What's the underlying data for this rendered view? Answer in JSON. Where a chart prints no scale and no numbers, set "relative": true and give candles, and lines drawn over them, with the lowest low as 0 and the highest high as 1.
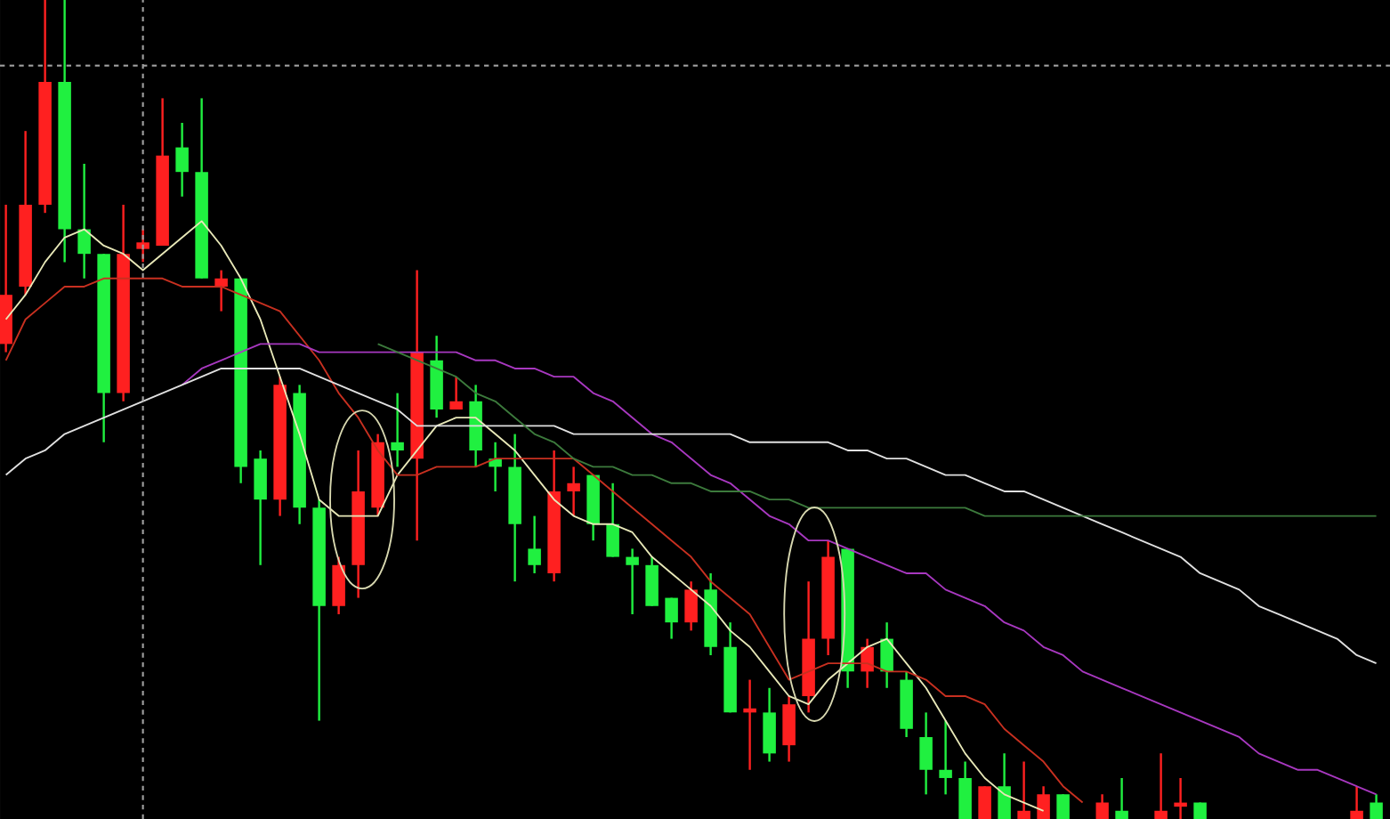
{
  "chart_data": {
    "type": "candlestick",
    "relative": true,
    "categories": [
      null,
      null,
      null,
      null,
      null,
      null,
      null,
      null,
      null,
      null,
      null,
      null,
      null,
      null,
      null,
      null,
      null,
      null,
      null,
      null,
      null,
      null,
      null,
      null,
      null,
      null,
      null,
      null,
      null,
      null,
      null,
      null,
      null,
      null,
      null,
      null,
      null,
      null,
      null,
      null,
      null,
      null,
      null,
      null,
      null,
      null,
      null,
      null,
      null,
      null,
      null,
      null,
      null,
      null,
      null,
      null,
      null,
      null,
      null,
      null,
      null,
      null,
      null,
      null,
      null,
      null,
      null,
      null,
      null,
      null,
      null
    ],
    "ohlc": [
      [
        0.58,
        0.75,
        0.57,
        0.64
      ],
      [
        0.65,
        0.84,
        0.64,
        0.75
      ],
      [
        0.75,
        1.0,
        0.74,
        0.9
      ],
      [
        0.9,
        1.0,
        0.68,
        0.72
      ],
      [
        0.72,
        0.8,
        0.66,
        0.69
      ],
      [
        0.69,
        0.69,
        0.46,
        0.52
      ],
      [
        0.52,
        0.75,
        0.51,
        0.69
      ],
      [
        0.696,
        0.72,
        0.68,
        0.704
      ],
      [
        0.7,
        0.88,
        0.7,
        0.81
      ],
      [
        0.82,
        0.85,
        0.76,
        0.79
      ],
      [
        0.79,
        0.88,
        0.66,
        0.66
      ],
      [
        0.65,
        0.67,
        0.62,
        0.66
      ],
      [
        0.66,
        0.66,
        0.41,
        0.43
      ],
      [
        0.44,
        0.45,
        0.31,
        0.39
      ],
      [
        0.39,
        0.54,
        0.37,
        0.53
      ],
      [
        0.52,
        0.53,
        0.36,
        0.38
      ],
      [
        0.38,
        0.39,
        0.12,
        0.26
      ],
      [
        0.26,
        0.32,
        0.25,
        0.31
      ],
      [
        0.31,
        0.45,
        0.27,
        0.4
      ],
      [
        0.38,
        0.47,
        0.37,
        0.46
      ],
      [
        0.46,
        0.52,
        0.43,
        0.45
      ],
      [
        0.44,
        0.67,
        0.34,
        0.57
      ],
      [
        0.56,
        0.59,
        0.49,
        0.5
      ],
      [
        0.5,
        0.54,
        0.5,
        0.51
      ],
      [
        0.51,
        0.53,
        0.43,
        0.45
      ],
      [
        0.44,
        0.46,
        0.4,
        0.43
      ],
      [
        0.43,
        0.47,
        0.29,
        0.36
      ],
      [
        0.33,
        0.37,
        0.3,
        0.31
      ],
      [
        0.3,
        0.45,
        0.29,
        0.4
      ],
      [
        0.4,
        0.43,
        0.37,
        0.41
      ],
      [
        0.42,
        0.42,
        0.34,
        0.36
      ],
      [
        0.36,
        0.41,
        0.32,
        0.32
      ],
      [
        0.32,
        0.33,
        0.25,
        0.31
      ],
      [
        0.31,
        0.32,
        0.26,
        0.26
      ],
      [
        0.27,
        0.27,
        0.22,
        0.24
      ],
      [
        0.24,
        0.29,
        0.23,
        0.28
      ],
      [
        0.28,
        0.3,
        0.2,
        0.21
      ],
      [
        0.21,
        0.24,
        0.13,
        0.13
      ],
      [
        0.13,
        0.17,
        0.06,
        0.135
      ],
      [
        0.13,
        0.16,
        0.07,
        0.08
      ],
      [
        0.09,
        0.15,
        0.07,
        0.14
      ],
      [
        0.15,
        0.29,
        0.13,
        0.22
      ],
      [
        0.22,
        0.34,
        0.2,
        0.32
      ],
      [
        0.33,
        0.33,
        0.16,
        0.18
      ],
      [
        0.18,
        0.22,
        0.16,
        0.21
      ],
      [
        0.22,
        0.24,
        0.16,
        0.18
      ],
      [
        0.17,
        0.18,
        0.1,
        0.11
      ],
      [
        0.1,
        0.13,
        0.03,
        0.06
      ],
      [
        0.06,
        0.12,
        0.03,
        0.05
      ],
      [
        0.05,
        0.07,
        0.0,
        0.0
      ],
      [
        0.0,
        0.04,
        0.0,
        0.04
      ],
      [
        0.04,
        0.08,
        0.0,
        0.0
      ],
      [
        0.0,
        0.07,
        0.0,
        0.01
      ],
      [
        0.0,
        0.04,
        0.0,
        0.03
      ],
      [
        0.03,
        0.03,
        0.0,
        0.0
      ],
      null,
      [
        0.0,
        0.03,
        0.0,
        0.02
      ],
      [
        0.01,
        0.05,
        0.0,
        0.0
      ],
      null,
      [
        0.0,
        0.08,
        0.0,
        0.01
      ],
      [
        0.015,
        0.05,
        0.0,
        0.02
      ],
      [
        0.02,
        0.02,
        0.0,
        0.0
      ],
      null,
      null,
      null,
      null,
      null,
      null,
      null,
      [
        0.0,
        0.04,
        0.0,
        0.01
      ],
      [
        0.02,
        0.03,
        0.0,
        0.0
      ]
    ],
    "colors": [
      "#ff2020",
      "#ff2020",
      "#ff2020",
      "#20f040",
      "#20f040",
      "#20f040",
      "#ff2020",
      "#ff2020",
      "#ff2020",
      "#20f040",
      "#20f040",
      "#ff2020",
      "#20f040",
      "#20f040",
      "#ff2020",
      "#20f040",
      "#20f040",
      "#ff2020",
      "#ff2020",
      "#ff2020",
      "#20f040",
      "#ff2020",
      "#20f040",
      "#ff2020",
      "#20f040",
      "#20f040",
      "#20f040",
      "#20f040",
      "#ff2020",
      "#ff2020",
      "#20f040",
      "#20f040",
      "#20f040",
      "#20f040",
      "#20f040",
      "#ff2020",
      "#20f040",
      "#20f040",
      "#ff2020",
      "#20f040",
      "#ff2020",
      "#ff2020",
      "#ff2020",
      "#20f040",
      "#ff2020",
      "#20f040",
      "#20f040",
      "#20f040",
      "#20f040",
      "#20f040",
      "#ff2020",
      "#20f040",
      "#ff2020",
      "#ff2020",
      "#20f040",
      null,
      "#ff2020",
      "#20f040",
      null,
      "#ff2020",
      "#ff2020",
      "#20f040",
      null,
      null,
      null,
      null,
      null,
      null,
      null,
      "#ff2020",
      "#20f040"
    ],
    "series": [
      {
        "type": "line",
        "color": "#e8e8b8",
        "values": [
          0.61,
          0.64,
          0.68,
          0.71,
          0.72,
          0.7,
          0.69,
          0.67,
          0.69,
          0.71,
          0.73,
          0.7,
          0.66,
          0.61,
          0.54,
          0.47,
          0.39,
          0.37,
          0.37,
          0.37,
          0.42,
          0.45,
          0.48,
          0.49,
          0.49,
          0.47,
          0.45,
          0.42,
          0.39,
          0.37,
          0.36,
          0.36,
          0.35,
          0.32,
          0.3,
          0.28,
          0.26,
          0.23,
          0.21,
          0.18,
          0.15,
          0.14,
          0.17,
          0.19,
          0.21,
          0.22,
          0.19,
          0.16,
          0.12,
          0.08,
          0.05,
          0.03,
          0.02,
          0.01,
          null,
          null,
          null,
          null,
          null,
          null,
          null,
          null,
          null,
          null,
          null,
          null,
          null,
          null,
          null,
          null,
          null
        ]
      },
      {
        "type": "line",
        "color": "#c83020",
        "values": [
          0.56,
          0.61,
          0.63,
          0.65,
          0.65,
          0.66,
          0.66,
          0.66,
          0.66,
          0.65,
          0.65,
          0.65,
          0.64,
          0.63,
          0.62,
          0.59,
          0.56,
          0.52,
          0.49,
          0.45,
          0.42,
          0.42,
          0.43,
          0.43,
          0.43,
          0.44,
          0.44,
          0.44,
          0.44,
          0.44,
          0.42,
          0.4,
          0.38,
          0.36,
          0.34,
          0.32,
          0.29,
          0.27,
          0.25,
          0.21,
          0.17,
          0.18,
          0.19,
          0.19,
          0.19,
          0.18,
          0.18,
          0.17,
          0.15,
          0.15,
          0.14,
          0.11,
          0.09,
          0.07,
          0.04,
          0.02,
          null,
          null,
          null,
          null,
          null,
          null,
          null,
          null,
          null,
          null,
          null,
          null,
          null,
          null,
          null
        ]
      },
      {
        "type": "line",
        "color": "#a838c0",
        "values": [
          null,
          null,
          null,
          null,
          null,
          null,
          null,
          null,
          null,
          0.53,
          0.55,
          0.56,
          0.57,
          0.58,
          0.58,
          0.58,
          0.57,
          0.57,
          0.57,
          0.57,
          0.57,
          0.57,
          0.57,
          0.57,
          0.56,
          0.56,
          0.55,
          0.55,
          0.54,
          0.54,
          0.52,
          0.51,
          0.49,
          0.47,
          0.46,
          0.44,
          0.42,
          0.41,
          0.39,
          0.37,
          0.36,
          0.34,
          0.34,
          0.33,
          0.32,
          0.31,
          0.3,
          0.3,
          0.28,
          0.27,
          0.26,
          0.24,
          0.23,
          0.21,
          0.2,
          0.18,
          0.17,
          0.16,
          0.15,
          0.14,
          0.13,
          0.12,
          0.11,
          0.1,
          0.08,
          0.07,
          0.06,
          0.06,
          0.05,
          0.04,
          0.03
        ]
      },
      {
        "type": "line",
        "color": "#e0e0e0",
        "values": [
          0.42,
          0.44,
          0.45,
          0.47,
          0.48,
          0.49,
          0.5,
          0.51,
          0.52,
          0.53,
          0.54,
          0.55,
          0.55,
          0.55,
          0.55,
          0.55,
          0.54,
          0.53,
          0.52,
          0.51,
          0.5,
          0.48,
          0.48,
          0.48,
          0.48,
          0.48,
          0.48,
          0.48,
          0.48,
          0.47,
          0.47,
          0.47,
          0.47,
          0.47,
          0.47,
          0.47,
          0.47,
          0.47,
          0.46,
          0.46,
          0.46,
          0.46,
          0.46,
          0.45,
          0.45,
          0.44,
          0.44,
          0.43,
          0.42,
          0.42,
          0.41,
          0.4,
          0.4,
          0.39,
          0.38,
          0.37,
          0.36,
          0.35,
          0.34,
          0.33,
          0.32,
          0.3,
          0.29,
          0.28,
          0.26,
          0.25,
          0.24,
          0.23,
          0.22,
          0.2,
          0.19
        ]
      },
      {
        "type": "line",
        "color": "#3c7a3c",
        "values": [
          null,
          null,
          null,
          null,
          null,
          null,
          null,
          null,
          null,
          null,
          null,
          null,
          null,
          null,
          null,
          null,
          null,
          null,
          null,
          0.58,
          0.57,
          0.56,
          0.55,
          0.54,
          0.52,
          0.51,
          0.49,
          0.47,
          0.46,
          0.44,
          0.43,
          0.43,
          0.42,
          0.42,
          0.41,
          0.41,
          0.4,
          0.4,
          0.4,
          0.39,
          0.39,
          0.38,
          0.38,
          0.38,
          0.38,
          0.38,
          0.38,
          0.38,
          0.38,
          0.38,
          0.37,
          0.37,
          0.37,
          0.37,
          0.37,
          0.37,
          0.37,
          0.37,
          0.37,
          0.37,
          0.37,
          0.37,
          0.37,
          0.37,
          0.37,
          0.37,
          0.37,
          0.37,
          0.37,
          0.37,
          0.37
        ]
      }
    ],
    "ref_lines": [
      {
        "axis": "y",
        "value": 0.92,
        "color": "#a0a0a0",
        "line_style": "dashed"
      }
    ]
  }
}
